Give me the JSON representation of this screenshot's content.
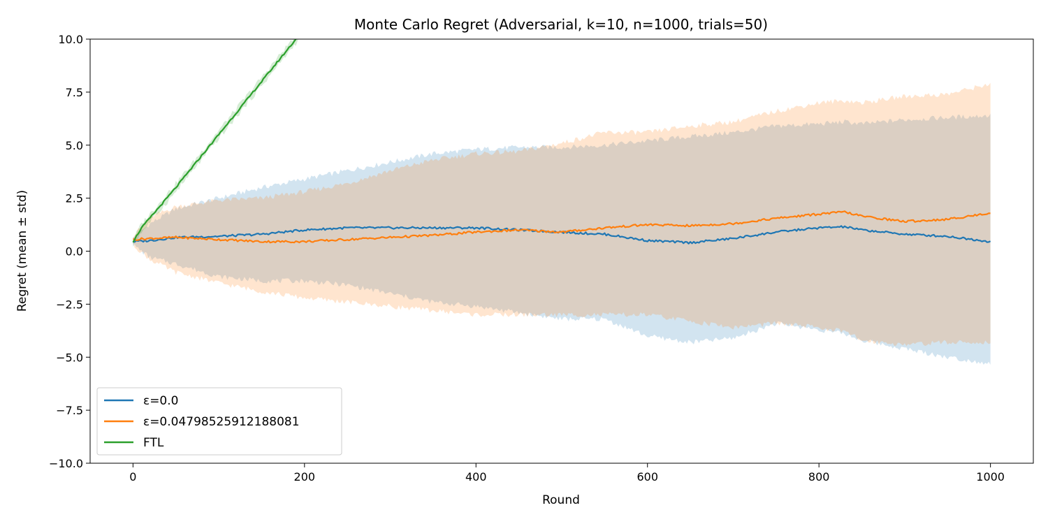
{
  "chart_data": {
    "type": "line",
    "title": "Monte Carlo Regret (Adversarial, k=10, n=1000, trials=50)",
    "xlabel": "Round",
    "ylabel": "Regret (mean ± std)",
    "xlim": [
      -50,
      1050
    ],
    "ylim": [
      -10.0,
      10.0
    ],
    "x_ticks": [
      0,
      200,
      400,
      600,
      800,
      1000
    ],
    "x_tick_labels": [
      "0",
      "200",
      "400",
      "600",
      "800",
      "1000"
    ],
    "y_ticks": [
      -10.0,
      -7.5,
      -5.0,
      -2.5,
      0.0,
      2.5,
      5.0,
      7.5,
      10.0
    ],
    "y_tick_labels": [
      "−10.0",
      "−7.5",
      "−5.0",
      "−2.5",
      "0.0",
      "2.5",
      "5.0",
      "7.5",
      "10.0"
    ],
    "grid": false,
    "legend_position": "lower-left",
    "x": [
      0,
      20,
      50,
      100,
      150,
      200,
      250,
      300,
      350,
      400,
      450,
      500,
      550,
      600,
      650,
      700,
      750,
      800,
      830,
      850,
      900,
      950,
      1000
    ],
    "series": [
      {
        "name": "ε=0.0",
        "color": "#1f77b4",
        "mean": [
          0.45,
          0.5,
          0.65,
          0.7,
          0.8,
          1.0,
          1.1,
          1.1,
          1.1,
          1.1,
          1.0,
          0.9,
          0.8,
          0.5,
          0.4,
          0.6,
          0.9,
          1.1,
          1.15,
          1.0,
          0.8,
          0.7,
          0.45
        ],
        "upper": [
          0.6,
          1.3,
          2.0,
          2.5,
          3.0,
          3.4,
          3.8,
          4.2,
          4.6,
          4.8,
          4.9,
          4.9,
          5.0,
          5.2,
          5.4,
          5.6,
          5.9,
          6.0,
          6.1,
          6.0,
          6.2,
          6.3,
          6.4
        ],
        "lower": [
          0.3,
          -0.3,
          -0.6,
          -1.2,
          -1.4,
          -1.4,
          -1.6,
          -2.0,
          -2.4,
          -2.6,
          -2.9,
          -3.2,
          -3.2,
          -4.0,
          -4.3,
          -4.1,
          -3.4,
          -3.7,
          -3.9,
          -4.2,
          -4.6,
          -5.0,
          -5.3
        ]
      },
      {
        "name": "ε=0.04798525912188081",
        "color": "#ff7f0e",
        "mean": [
          0.55,
          0.6,
          0.65,
          0.55,
          0.45,
          0.45,
          0.55,
          0.65,
          0.75,
          0.9,
          1.0,
          0.9,
          1.1,
          1.25,
          1.2,
          1.3,
          1.55,
          1.75,
          1.85,
          1.65,
          1.4,
          1.5,
          1.8
        ],
        "upper": [
          0.7,
          1.6,
          2.1,
          2.4,
          2.5,
          2.8,
          3.2,
          3.8,
          4.3,
          4.6,
          4.7,
          5.1,
          5.6,
          5.6,
          5.9,
          6.1,
          6.6,
          7.0,
          7.1,
          7.0,
          7.3,
          7.4,
          7.9
        ],
        "lower": [
          0.3,
          -0.4,
          -1.0,
          -1.5,
          -1.9,
          -2.2,
          -2.4,
          -2.6,
          -2.8,
          -3.0,
          -3.0,
          -3.0,
          -3.0,
          -3.0,
          -3.3,
          -3.6,
          -3.4,
          -3.6,
          -3.8,
          -4.2,
          -4.4,
          -4.3,
          -4.3
        ]
      },
      {
        "name": "FTL",
        "color": "#2ca02c",
        "x": [
          0,
          10,
          50,
          100,
          150,
          200
        ],
        "mean": [
          0.45,
          1.1,
          3.0,
          5.5,
          8.0,
          10.5
        ],
        "upper": [
          0.55,
          1.3,
          3.2,
          5.7,
          8.2,
          10.7
        ],
        "lower": [
          0.35,
          0.9,
          2.8,
          5.3,
          7.8,
          10.3
        ]
      }
    ]
  }
}
